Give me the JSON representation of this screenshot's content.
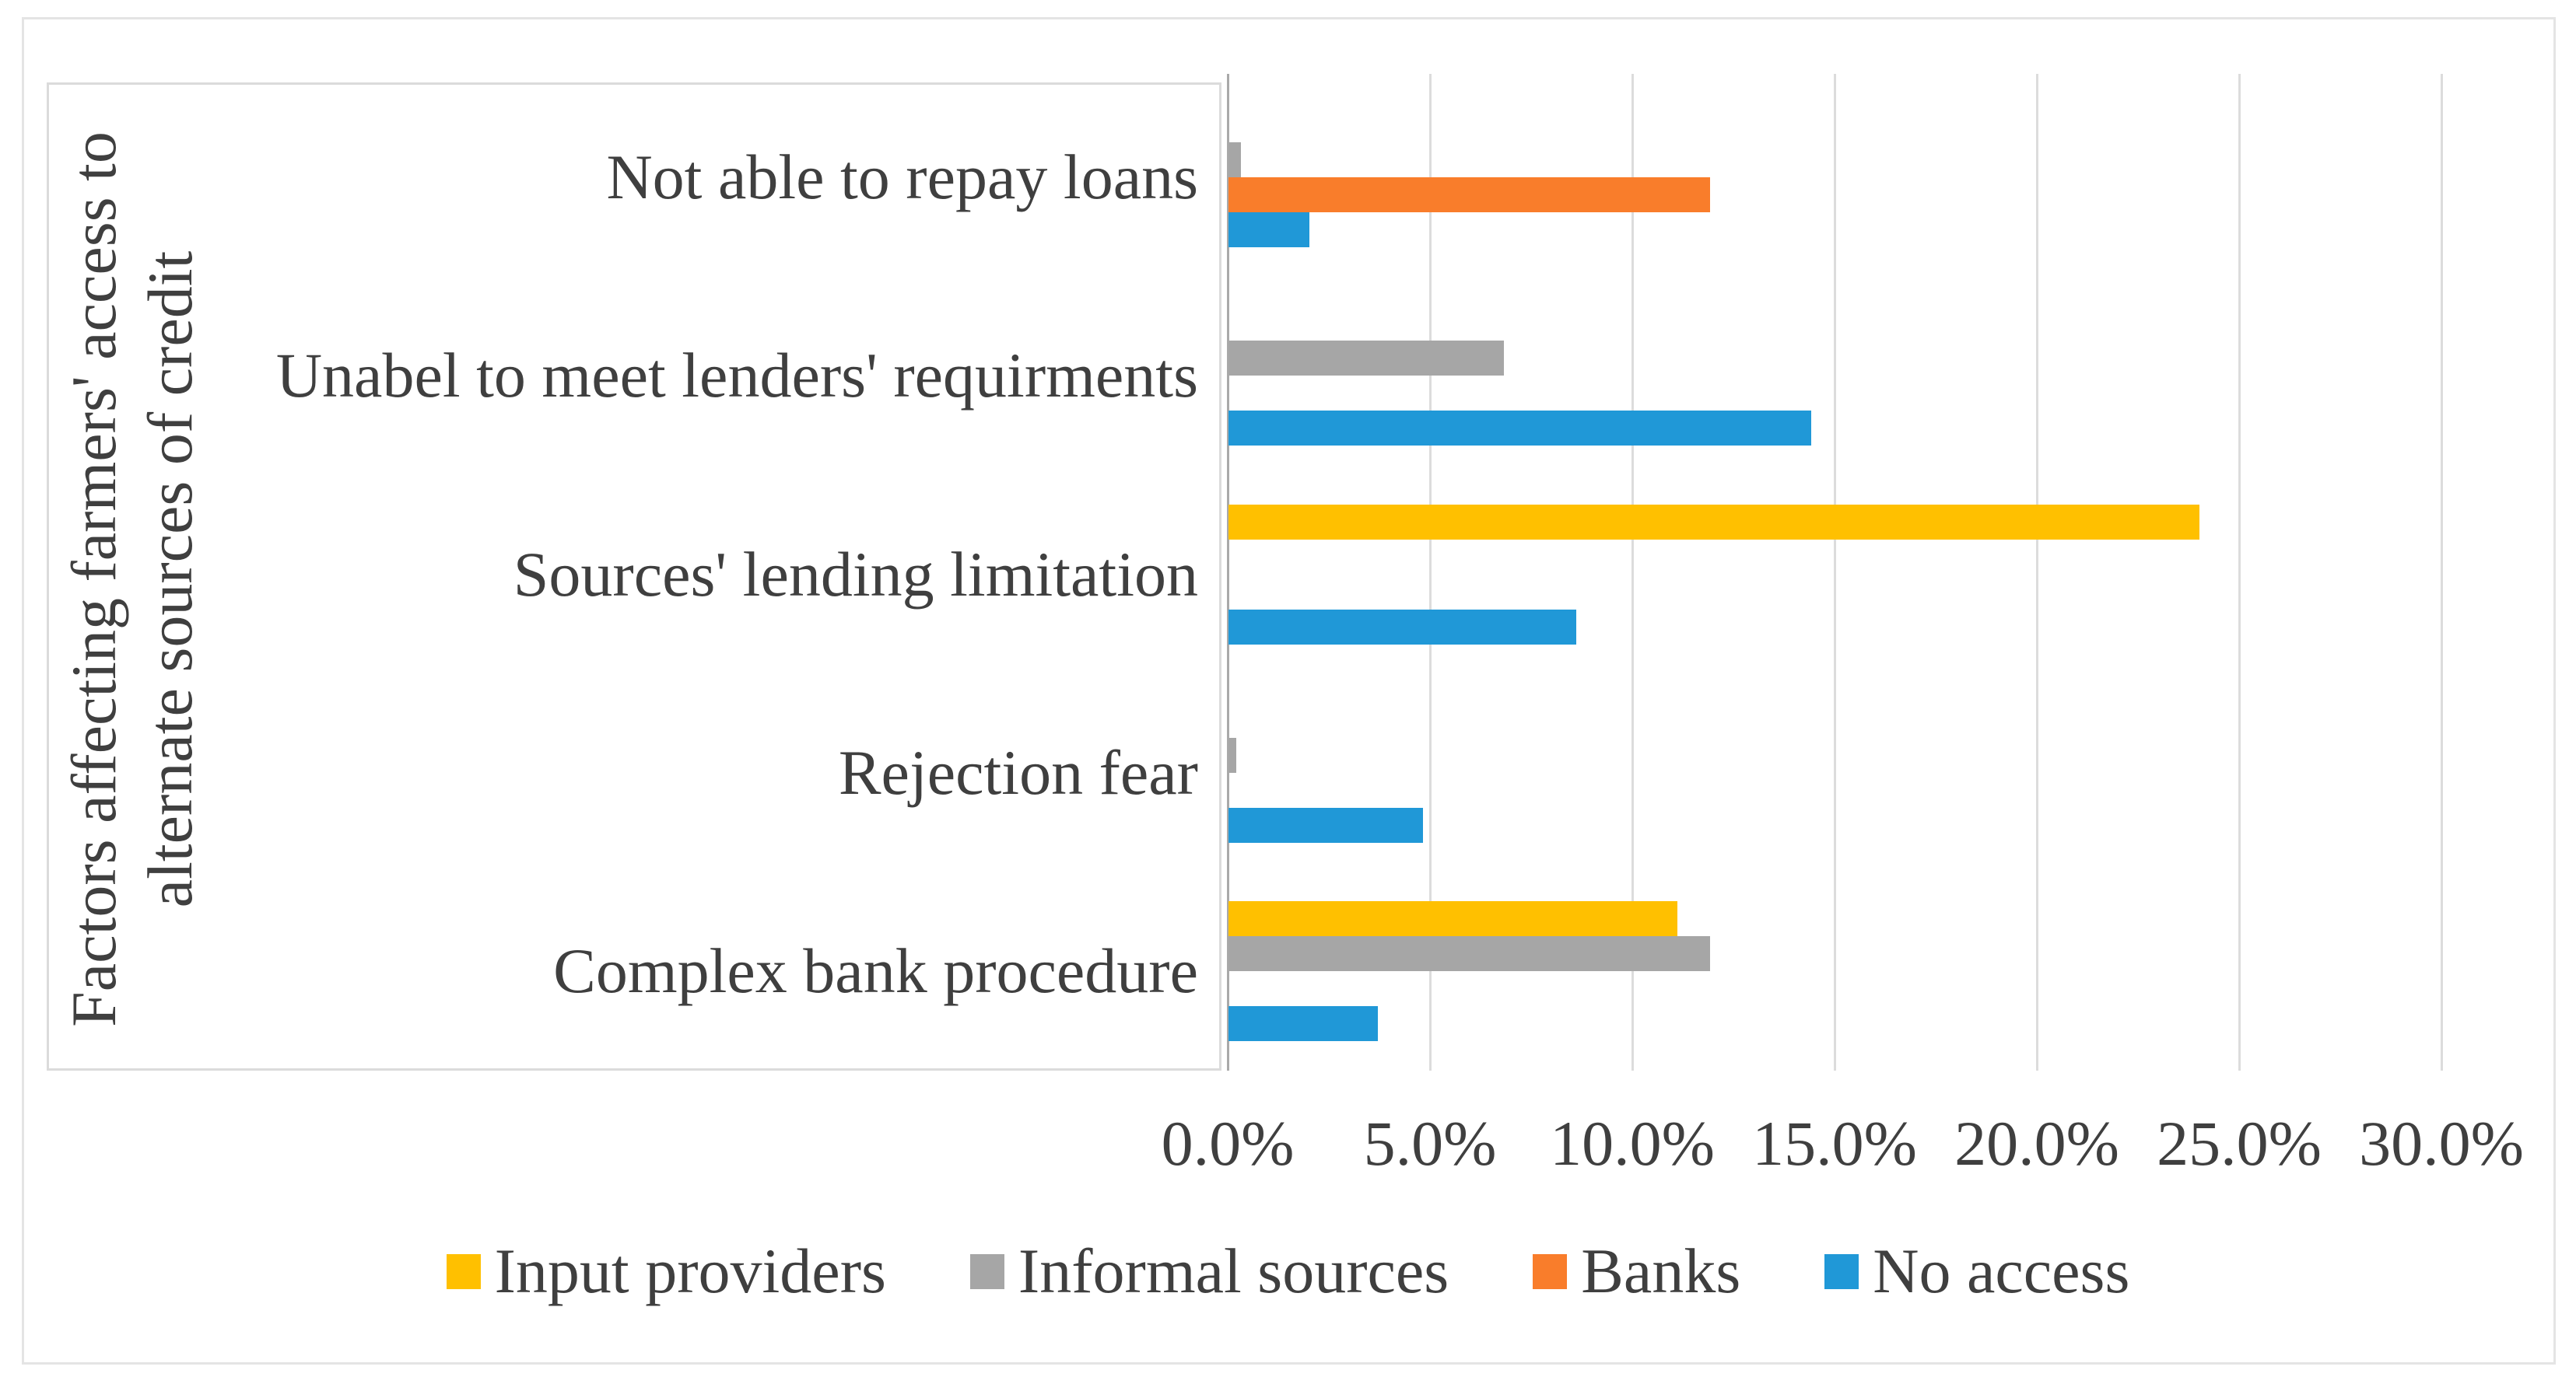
{
  "figure": {
    "y_axis_title_line1": "Factors affecting farmers' access to",
    "y_axis_title_line2": "alternate sources of credit"
  },
  "chart_data": {
    "type": "bar",
    "orientation": "horizontal",
    "title": "",
    "ylabel": "Factors affecting farmers' access to alternate sources of credit",
    "xlabel": "",
    "grid": true,
    "legend_position": "bottom",
    "categories": [
      "Not able to repay loans",
      "Unabel to meet lenders' requirments",
      "Sources' lending limitation",
      "Rejection fear",
      "Complex bank procedure"
    ],
    "series": [
      {
        "name": "Input providers",
        "color": "#FFC000",
        "values": [
          0,
          0,
          24.0,
          0,
          11.1
        ]
      },
      {
        "name": "Informal sources",
        "color": "#A6A6A6",
        "values": [
          0.3,
          6.8,
          0,
          0.2,
          11.9
        ]
      },
      {
        "name": "Banks",
        "color": "#F97D2B",
        "values": [
          11.9,
          0,
          0,
          0,
          0
        ]
      },
      {
        "name": "No access",
        "color": "#2098D7",
        "values": [
          2.0,
          14.4,
          8.6,
          4.8,
          3.7
        ]
      }
    ],
    "x_axis": {
      "min": 0,
      "max": 30,
      "step": 5,
      "unit": "%",
      "tick_labels": [
        "0.0%",
        "5.0%",
        "10.0%",
        "15.0%",
        "20.0%",
        "25.0%",
        "30.0%"
      ]
    }
  }
}
